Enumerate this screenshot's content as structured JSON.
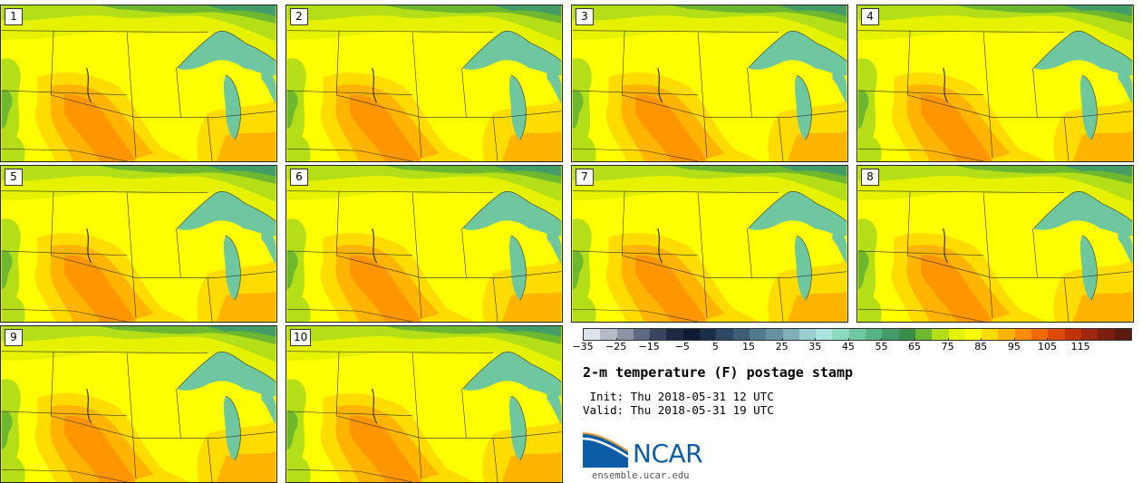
{
  "panels": [
    {
      "label": "1"
    },
    {
      "label": "2"
    },
    {
      "label": "3"
    },
    {
      "label": "4"
    },
    {
      "label": "5"
    },
    {
      "label": "6"
    },
    {
      "label": "7"
    },
    {
      "label": "8"
    },
    {
      "label": "9"
    },
    {
      "label": "10"
    }
  ],
  "colorbar": {
    "colors": [
      "#dde3ea",
      "#b6bcc7",
      "#8b93a5",
      "#5f6a82",
      "#3a4660",
      "#1e2944",
      "#101b33",
      "#1b2d48",
      "#2e4763",
      "#3e5e78",
      "#507a8e",
      "#6593a3",
      "#7fb0b8",
      "#99cfd0",
      "#a8e3df",
      "#8cd9c0",
      "#6fc7a0",
      "#56b383",
      "#449d68",
      "#3c8f48",
      "#6db82e",
      "#b3de18",
      "#e4f200",
      "#ffff00",
      "#ffdc00",
      "#ffb400",
      "#ff8c00",
      "#f06a00",
      "#dc4a00",
      "#c23200",
      "#a02610",
      "#7c1f10",
      "#5a1a0e"
    ],
    "tick_labels": [
      "−35",
      "−25",
      "−15",
      "−5",
      "5",
      "15",
      "25",
      "35",
      "45",
      "55",
      "65",
      "75",
      "85",
      "95",
      "105",
      "115"
    ]
  },
  "title": "2-m temperature (F) postage stamp",
  "init_text": " Init: Thu 2018-05-31 12 UTC",
  "valid_text": "Valid: Thu 2018-05-31 19 UTC",
  "logo_text": "NCAR",
  "website": "ensemble.ucar.edu"
}
